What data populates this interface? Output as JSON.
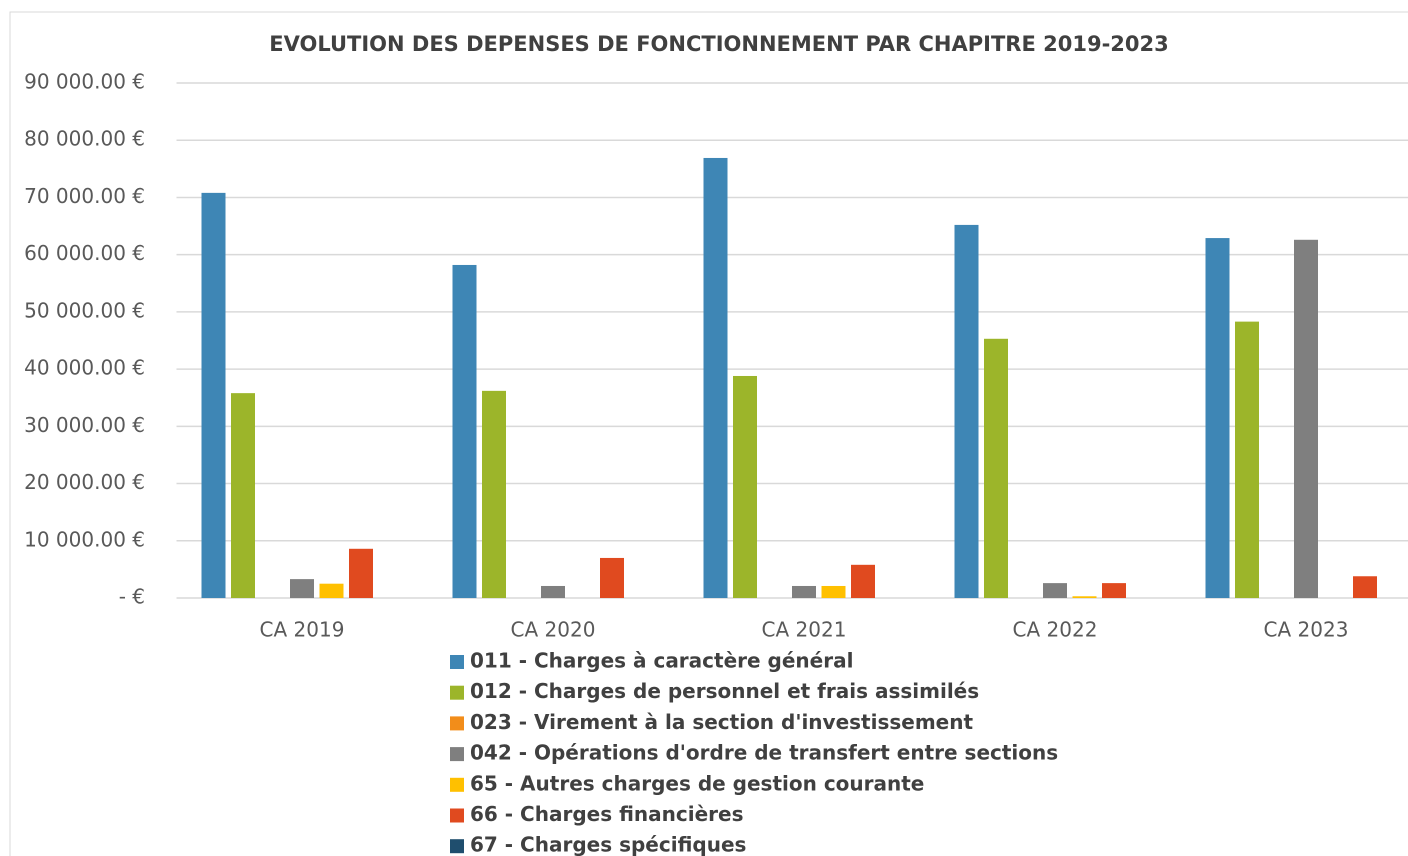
{
  "chart_data": {
    "type": "bar",
    "title": "EVOLUTION DES DEPENSES DE FONCTIONNEMENT PAR CHAPITRE 2019-2023",
    "categories": [
      "CA 2019",
      "CA 2020",
      "CA 2021",
      "CA 2022",
      "CA 2023"
    ],
    "series": [
      {
        "name": "011 - Charges à caractère général",
        "color": "#3e86b5",
        "values": [
          70800,
          58200,
          76900,
          65200,
          62900
        ]
      },
      {
        "name": "012 - Charges de personnel et frais assimilés",
        "color": "#9cb52a",
        "values": [
          35800,
          36200,
          38800,
          45300,
          48300
        ]
      },
      {
        "name": "023 - Virement à la section d'investissement",
        "color": "#f28d1a",
        "values": [
          0,
          0,
          0,
          0,
          0
        ]
      },
      {
        "name": "042 - Opérations d'ordre de transfert entre sections",
        "color": "#7f7f7f",
        "values": [
          3300,
          2100,
          2100,
          2600,
          62600
        ]
      },
      {
        "name": "65 - Autres charges de gestion courante",
        "color": "#ffc000",
        "values": [
          2500,
          0,
          2100,
          300,
          0
        ]
      },
      {
        "name": "66 - Charges financières",
        "color": "#e04a1f",
        "values": [
          8600,
          7000,
          5800,
          2600,
          3800
        ]
      },
      {
        "name": "67 - Charges spécifiques",
        "color": "#1f4e6e",
        "values": [
          0,
          0,
          0,
          0,
          0
        ]
      }
    ],
    "ylim": [
      0,
      90000
    ],
    "yticks": [
      {
        "value": 0,
        "label": "-  €"
      },
      {
        "value": 10000,
        "label": "10 000.00 €"
      },
      {
        "value": 20000,
        "label": "20 000.00 €"
      },
      {
        "value": 30000,
        "label": "30 000.00 €"
      },
      {
        "value": 40000,
        "label": "40 000.00 €"
      },
      {
        "value": 50000,
        "label": "50 000.00 €"
      },
      {
        "value": 60000,
        "label": "60 000.00 €"
      },
      {
        "value": 70000,
        "label": "70 000.00 €"
      },
      {
        "value": 80000,
        "label": "80 000.00 €"
      },
      {
        "value": 90000,
        "label": "90 000.00 €"
      }
    ],
    "grid": true,
    "legend": "bottom"
  }
}
